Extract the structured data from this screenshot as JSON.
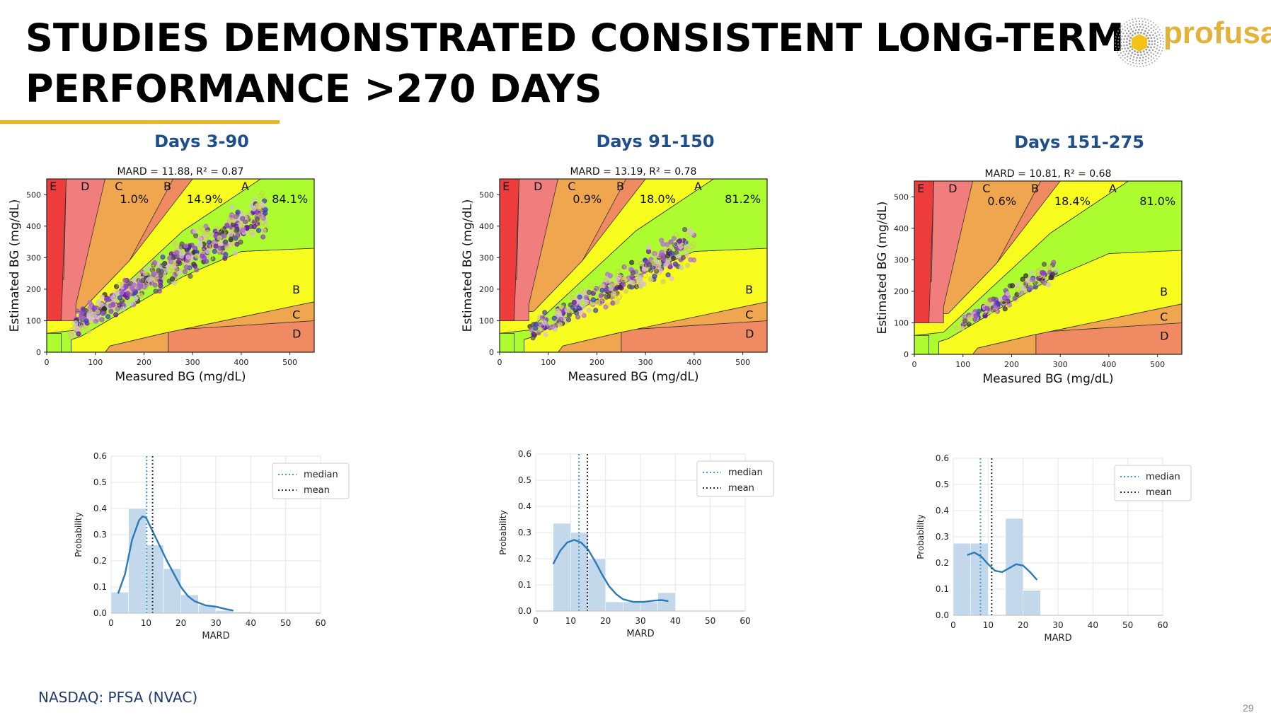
{
  "slide": {
    "title_line1": "STUDIES DEMONSTRATED CONSISTENT LONG-TERM",
    "title_line2": "PERFORMANCE >270 DAYS",
    "logo_text": "profusa",
    "footer": "NASDAQ: PFSA (NVAC)",
    "page_number": "29",
    "colors": {
      "title": "#000000",
      "accent_rule": "#e8b51a",
      "heading": "#1f4e8c",
      "logo": "#e2b23a"
    }
  },
  "chart_data": [
    {
      "type": "scatter",
      "heading": "Days 3-90",
      "title": "MARD = 11.88, R² = 0.87",
      "xlabel": "Measured BG (mg/dL)",
      "ylabel": "Estimated BG (mg/dL)",
      "xlim": [
        0,
        550
      ],
      "ylim": [
        0,
        550
      ],
      "xticks": [
        "0",
        "100",
        "200",
        "300",
        "400",
        "500"
      ],
      "yticks": [
        "0",
        "100",
        "200",
        "300",
        "400",
        "500"
      ],
      "zone_labels": [
        "E",
        "D",
        "C",
        "B",
        "A",
        "B",
        "C",
        "D"
      ],
      "zone_percents": {
        "C": "1.0%",
        "B": "14.9%",
        "A": "84.1%"
      },
      "zone_colors": {
        "A": "#adfc2f",
        "B": "#f8fc1e",
        "C": "#f0a64e",
        "D": "#ef8a62",
        "E": "#ee3c3c",
        "D_upper": "#f27d7d"
      },
      "points": {
        "x_min": 50,
        "x_max": 450,
        "y_at_x_low": 80,
        "slope": 0.92,
        "spread": 55,
        "count": 650,
        "seed": 11
      }
    },
    {
      "type": "scatter",
      "heading": "Days 91-150",
      "title": "MARD = 13.19, R² = 0.78",
      "xlabel": "Measured BG (mg/dL)",
      "ylabel": "Estimated BG (mg/dL)",
      "xlim": [
        0,
        550
      ],
      "ylim": [
        0,
        550
      ],
      "xticks": [
        "0",
        "100",
        "200",
        "300",
        "400",
        "500"
      ],
      "yticks": [
        "0",
        "100",
        "200",
        "300",
        "400",
        "500"
      ],
      "zone_labels": [
        "E",
        "D",
        "C",
        "B",
        "A",
        "B",
        "C",
        "D"
      ],
      "zone_percents": {
        "C": "0.9%",
        "B": "18.0%",
        "A": "81.2%"
      },
      "zone_colors": {
        "A": "#adfc2f",
        "B": "#f8fc1e",
        "C": "#f0a64e",
        "D": "#ef8a62",
        "E": "#ee3c3c",
        "D_upper": "#f27d7d"
      },
      "points": {
        "x_min": 60,
        "x_max": 400,
        "y_at_x_low": 65,
        "slope": 0.82,
        "spread": 50,
        "count": 380,
        "seed": 23
      }
    },
    {
      "type": "scatter",
      "heading": "Days 151-275",
      "title": "MARD = 10.81, R² = 0.68",
      "xlabel": "Measured BG (mg/dL)",
      "ylabel": "Estimated BG (mg/dL)",
      "xlim": [
        0,
        550
      ],
      "ylim": [
        0,
        550
      ],
      "xticks": [
        "0",
        "100",
        "200",
        "300",
        "400",
        "500"
      ],
      "yticks": [
        "0",
        "100",
        "200",
        "300",
        "400",
        "500"
      ],
      "zone_labels": [
        "E",
        "D",
        "C",
        "B",
        "A",
        "B",
        "C",
        "D"
      ],
      "zone_percents": {
        "C": "0.6%",
        "B": "18.4%",
        "A": "81.0%"
      },
      "zone_colors": {
        "A": "#adfc2f",
        "B": "#f8fc1e",
        "C": "#f0a64e",
        "D": "#ef8a62",
        "E": "#ee3c3c",
        "D_upper": "#f27d7d"
      },
      "points": {
        "x_min": 85,
        "x_max": 295,
        "y_at_x_low": 85,
        "slope": 0.9,
        "spread": 30,
        "count": 150,
        "seed": 37
      }
    },
    {
      "type": "bar",
      "subtype": "histogram_with_kde",
      "xlabel": "MARD",
      "ylabel": "Probability",
      "xlim": [
        0,
        60
      ],
      "ylim": [
        0,
        0.6
      ],
      "xticks": [
        "0",
        "10",
        "20",
        "30",
        "40",
        "50",
        "60"
      ],
      "yticks": [
        "0.0",
        "0.1",
        "0.2",
        "0.3",
        "0.4",
        "0.5",
        "0.6"
      ],
      "bins": [
        [
          0,
          5,
          0.08
        ],
        [
          5,
          10,
          0.4
        ],
        [
          10,
          15,
          0.26
        ],
        [
          15,
          20,
          0.17
        ],
        [
          20,
          25,
          0.07
        ],
        [
          25,
          30,
          0.03
        ],
        [
          30,
          35,
          0.01
        ],
        [
          35,
          40,
          0.005
        ]
      ],
      "kde": [
        [
          2,
          0.075
        ],
        [
          4,
          0.15
        ],
        [
          6,
          0.28
        ],
        [
          8,
          0.355
        ],
        [
          9,
          0.37
        ],
        [
          10,
          0.365
        ],
        [
          12,
          0.31
        ],
        [
          14,
          0.255
        ],
        [
          16,
          0.2
        ],
        [
          18,
          0.15
        ],
        [
          20,
          0.1
        ],
        [
          22,
          0.065
        ],
        [
          24,
          0.045
        ],
        [
          27,
          0.03
        ],
        [
          30,
          0.025
        ],
        [
          33,
          0.015
        ],
        [
          35,
          0.01
        ]
      ],
      "median": 10.2,
      "mean": 11.88,
      "legend": [
        "median",
        "mean"
      ]
    },
    {
      "type": "bar",
      "subtype": "histogram_with_kde",
      "xlabel": "MARD",
      "ylabel": "Probability",
      "xlim": [
        0,
        60
      ],
      "ylim": [
        0,
        0.6
      ],
      "xticks": [
        "0",
        "10",
        "20",
        "30",
        "40",
        "50",
        "60"
      ],
      "yticks": [
        "0.0",
        "0.1",
        "0.2",
        "0.3",
        "0.4",
        "0.5",
        "0.6"
      ],
      "bins": [
        [
          5,
          10,
          0.335
        ],
        [
          10,
          15,
          0.3
        ],
        [
          15,
          20,
          0.2
        ],
        [
          20,
          25,
          0.035
        ],
        [
          25,
          30,
          0.035
        ],
        [
          30,
          35,
          0.035
        ],
        [
          35,
          40,
          0.07
        ]
      ],
      "kde": [
        [
          5,
          0.18
        ],
        [
          7,
          0.23
        ],
        [
          9,
          0.262
        ],
        [
          11,
          0.272
        ],
        [
          13,
          0.262
        ],
        [
          15,
          0.235
        ],
        [
          17,
          0.19
        ],
        [
          19,
          0.14
        ],
        [
          21,
          0.095
        ],
        [
          23,
          0.065
        ],
        [
          25,
          0.045
        ],
        [
          28,
          0.035
        ],
        [
          31,
          0.035
        ],
        [
          34,
          0.04
        ],
        [
          36,
          0.042
        ],
        [
          38,
          0.038
        ]
      ],
      "median": 12.4,
      "mean": 14.8,
      "legend": [
        "median",
        "mean"
      ]
    },
    {
      "type": "bar",
      "subtype": "histogram_with_kde",
      "xlabel": "MARD",
      "ylabel": "Probability",
      "xlim": [
        0,
        60
      ],
      "ylim": [
        0,
        0.6
      ],
      "xticks": [
        "0",
        "10",
        "20",
        "30",
        "40",
        "50",
        "60"
      ],
      "yticks": [
        "0.0",
        "0.1",
        "0.2",
        "0.3",
        "0.4",
        "0.5",
        "0.6"
      ],
      "bins": [
        [
          0,
          5,
          0.275
        ],
        [
          5,
          10,
          0.275
        ],
        [
          15,
          20,
          0.37
        ],
        [
          20,
          25,
          0.095
        ]
      ],
      "kde": [
        [
          4,
          0.23
        ],
        [
          6,
          0.24
        ],
        [
          8,
          0.225
        ],
        [
          10,
          0.195
        ],
        [
          12,
          0.17
        ],
        [
          14,
          0.165
        ],
        [
          16,
          0.18
        ],
        [
          18,
          0.195
        ],
        [
          20,
          0.19
        ],
        [
          22,
          0.165
        ],
        [
          24,
          0.135
        ]
      ],
      "median": 7.8,
      "mean": 11.0,
      "legend": [
        "median",
        "mean"
      ]
    }
  ]
}
